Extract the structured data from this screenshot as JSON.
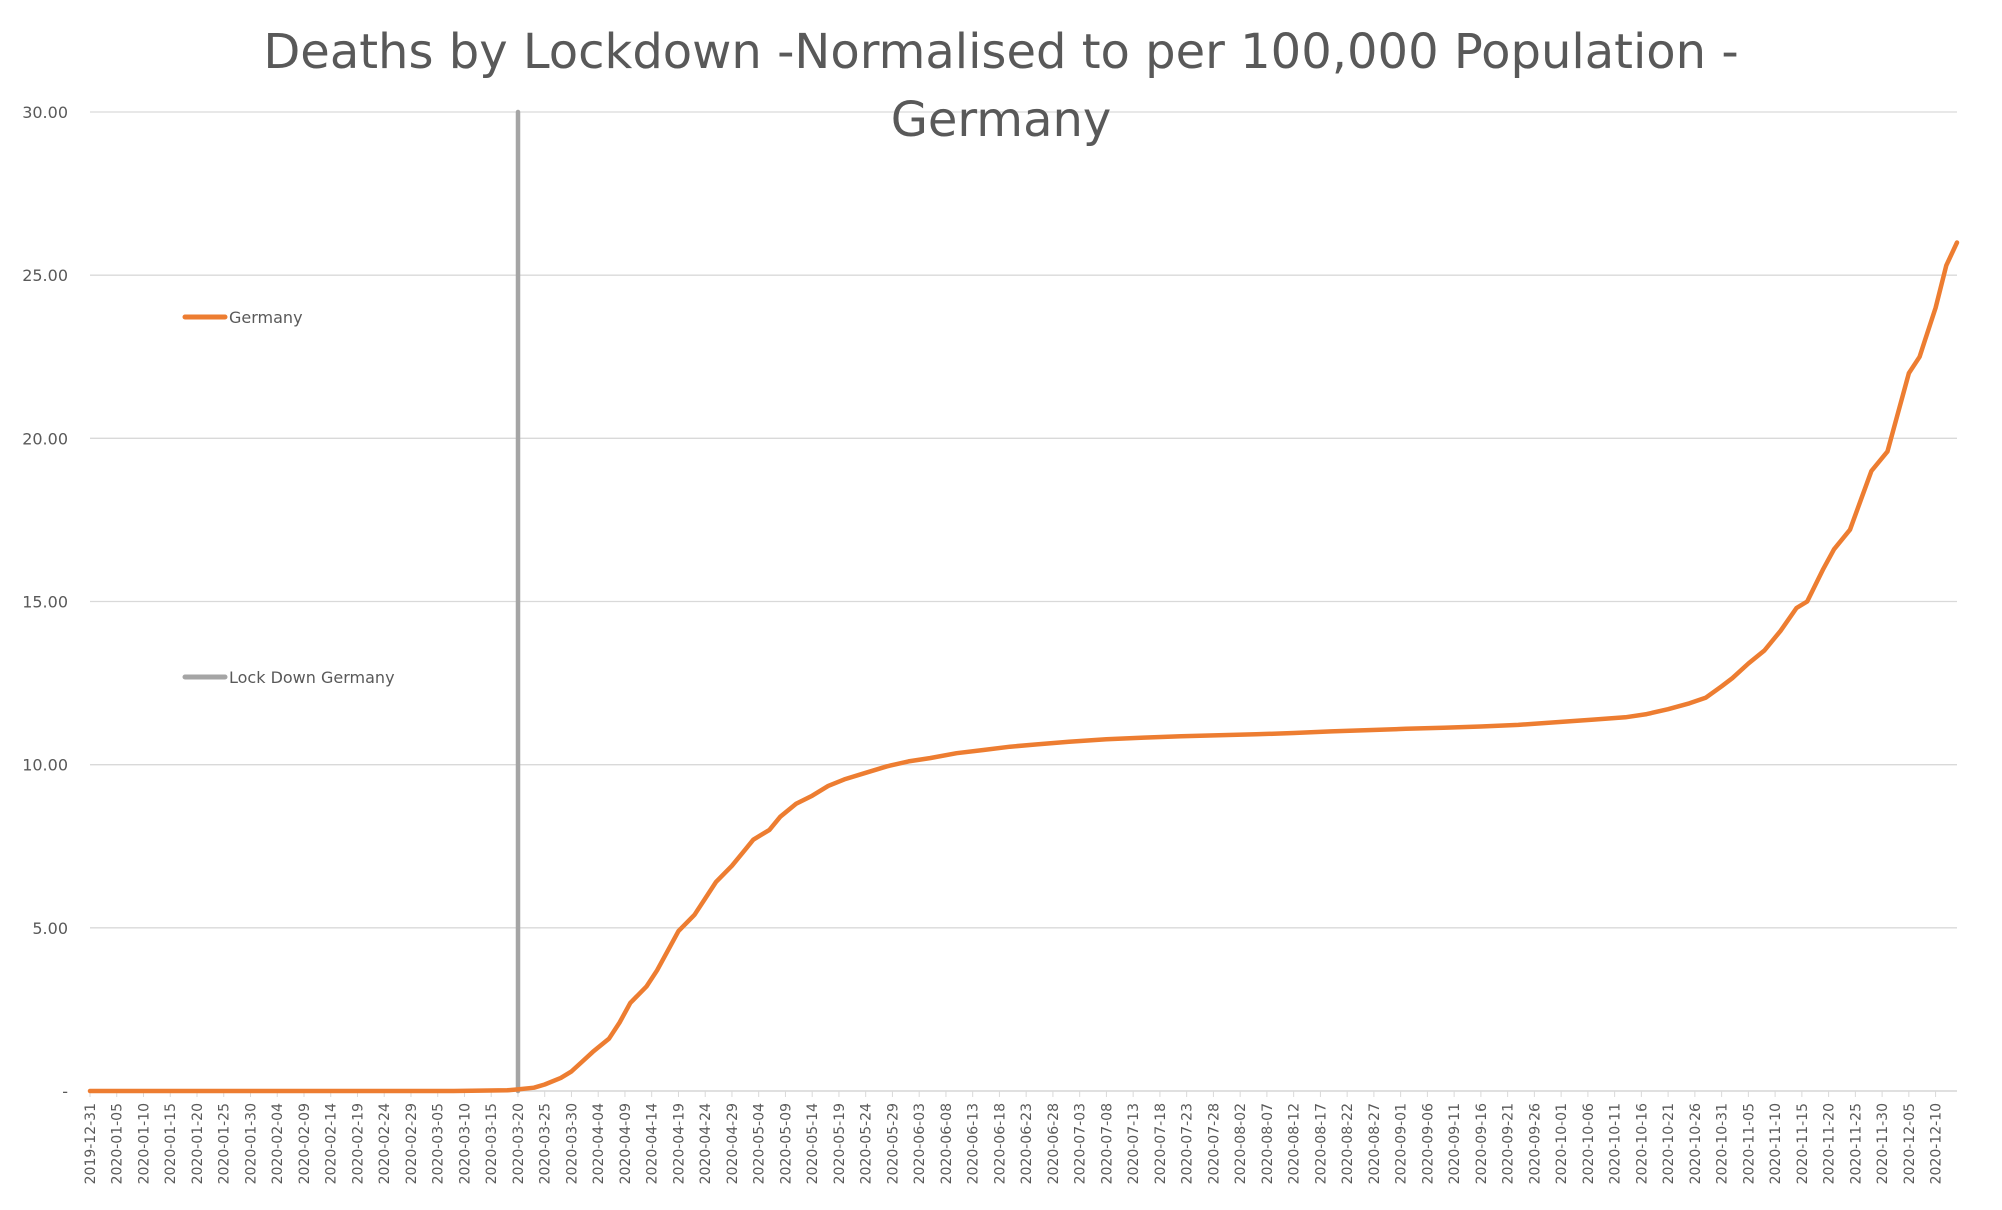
{
  "chart_data": {
    "type": "line",
    "title_line1": "Deaths by Lockdown -Normalised to per 100,000 Population -",
    "title_line2": "Germany",
    "xlabel": "",
    "ylabel": "",
    "ylim": [
      0,
      30
    ],
    "yticks": [
      {
        "value": 0,
        "label": "-"
      },
      {
        "value": 5,
        "label": "5.00"
      },
      {
        "value": 10,
        "label": "10.00"
      },
      {
        "value": 15,
        "label": "15.00"
      },
      {
        "value": 20,
        "label": "20.00"
      },
      {
        "value": 25,
        "label": "25.00"
      },
      {
        "value": 30,
        "label": "30.00"
      }
    ],
    "xrange": [
      "2019-12-31",
      "2020-12-14"
    ],
    "xtick_labels": [
      "2019-12-31",
      "2020-01-05",
      "2020-01-10",
      "2020-01-15",
      "2020-01-20",
      "2020-01-25",
      "2020-01-30",
      "2020-02-04",
      "2020-02-09",
      "2020-02-14",
      "2020-02-19",
      "2020-02-24",
      "2020-02-29",
      "2020-03-05",
      "2020-03-10",
      "2020-03-15",
      "2020-03-20",
      "2020-03-25",
      "2020-03-30",
      "2020-04-04",
      "2020-04-09",
      "2020-04-14",
      "2020-04-19",
      "2020-04-24",
      "2020-04-29",
      "2020-05-04",
      "2020-05-09",
      "2020-05-14",
      "2020-05-19",
      "2020-05-24",
      "2020-05-29",
      "2020-06-03",
      "2020-06-08",
      "2020-06-13",
      "2020-06-18",
      "2020-06-23",
      "2020-06-28",
      "2020-07-03",
      "2020-07-08",
      "2020-07-13",
      "2020-07-18",
      "2020-07-23",
      "2020-07-28",
      "2020-08-02",
      "2020-08-07",
      "2020-08-12",
      "2020-08-17",
      "2020-08-22",
      "2020-08-27",
      "2020-09-01",
      "2020-09-06",
      "2020-09-11",
      "2020-09-16",
      "2020-09-21",
      "2020-09-26",
      "2020-10-01",
      "2020-10-06",
      "2020-10-11",
      "2020-10-16",
      "2020-10-21",
      "2020-10-26",
      "2020-10-31",
      "2020-11-05",
      "2020-11-10",
      "2020-11-15",
      "2020-11-20",
      "2020-11-25",
      "2020-11-30",
      "2020-12-05",
      "2020-12-10"
    ],
    "grid": true,
    "legend_placement": "left",
    "series": [
      {
        "name": "Germany",
        "color": "#ED7D31",
        "points": [
          [
            "2019-12-31",
            0
          ],
          [
            "2020-03-08",
            0
          ],
          [
            "2020-03-18",
            0.02
          ],
          [
            "2020-03-20",
            0.05
          ],
          [
            "2020-03-23",
            0.1
          ],
          [
            "2020-03-25",
            0.2
          ],
          [
            "2020-03-28",
            0.4
          ],
          [
            "2020-03-30",
            0.6
          ],
          [
            "2020-04-01",
            0.9
          ],
          [
            "2020-04-03",
            1.2
          ],
          [
            "2020-04-06",
            1.6
          ],
          [
            "2020-04-08",
            2.1
          ],
          [
            "2020-04-10",
            2.7
          ],
          [
            "2020-04-13",
            3.2
          ],
          [
            "2020-04-15",
            3.7
          ],
          [
            "2020-04-17",
            4.3
          ],
          [
            "2020-04-19",
            4.9
          ],
          [
            "2020-04-22",
            5.4
          ],
          [
            "2020-04-24",
            5.9
          ],
          [
            "2020-04-26",
            6.4
          ],
          [
            "2020-04-29",
            6.9
          ],
          [
            "2020-05-01",
            7.3
          ],
          [
            "2020-05-03",
            7.7
          ],
          [
            "2020-05-06",
            8.0
          ],
          [
            "2020-05-08",
            8.4
          ],
          [
            "2020-05-11",
            8.8
          ],
          [
            "2020-05-14",
            9.05
          ],
          [
            "2020-05-17",
            9.35
          ],
          [
            "2020-05-20",
            9.55
          ],
          [
            "2020-05-24",
            9.75
          ],
          [
            "2020-05-28",
            9.95
          ],
          [
            "2020-06-01",
            10.1
          ],
          [
            "2020-06-05",
            10.2
          ],
          [
            "2020-06-10",
            10.35
          ],
          [
            "2020-06-15",
            10.45
          ],
          [
            "2020-06-20",
            10.55
          ],
          [
            "2020-06-25",
            10.62
          ],
          [
            "2020-07-01",
            10.7
          ],
          [
            "2020-07-08",
            10.78
          ],
          [
            "2020-07-15",
            10.83
          ],
          [
            "2020-07-22",
            10.87
          ],
          [
            "2020-07-29",
            10.9
          ],
          [
            "2020-08-05",
            10.93
          ],
          [
            "2020-08-12",
            10.97
          ],
          [
            "2020-08-19",
            11.02
          ],
          [
            "2020-08-26",
            11.06
          ],
          [
            "2020-09-02",
            11.1
          ],
          [
            "2020-09-09",
            11.13
          ],
          [
            "2020-09-16",
            11.17
          ],
          [
            "2020-09-23",
            11.22
          ],
          [
            "2020-09-30",
            11.3
          ],
          [
            "2020-10-07",
            11.38
          ],
          [
            "2020-10-13",
            11.45
          ],
          [
            "2020-10-17",
            11.55
          ],
          [
            "2020-10-21",
            11.7
          ],
          [
            "2020-10-25",
            11.88
          ],
          [
            "2020-10-28",
            12.05
          ],
          [
            "2020-10-31",
            12.4
          ],
          [
            "2020-11-02",
            12.65
          ],
          [
            "2020-11-05",
            13.1
          ],
          [
            "2020-11-08",
            13.5
          ],
          [
            "2020-11-11",
            14.1
          ],
          [
            "2020-11-14",
            14.8
          ],
          [
            "2020-11-16",
            15.0
          ],
          [
            "2020-11-19",
            16.0
          ],
          [
            "2020-11-21",
            16.6
          ],
          [
            "2020-11-24",
            17.2
          ],
          [
            "2020-11-26",
            18.1
          ],
          [
            "2020-11-28",
            19.0
          ],
          [
            "2020-12-01",
            19.6
          ],
          [
            "2020-12-03",
            20.8
          ],
          [
            "2020-12-05",
            22.0
          ],
          [
            "2020-12-07",
            22.5
          ],
          [
            "2020-12-08",
            23.0
          ],
          [
            "2020-12-10",
            24.0
          ],
          [
            "2020-12-12",
            25.3
          ],
          [
            "2020-12-14",
            26.0
          ]
        ]
      },
      {
        "name": "Lock Down Germany",
        "color": "#A5A5A5",
        "points": [
          [
            "2020-03-20",
            0
          ],
          [
            "2020-03-20",
            30
          ]
        ]
      }
    ]
  }
}
